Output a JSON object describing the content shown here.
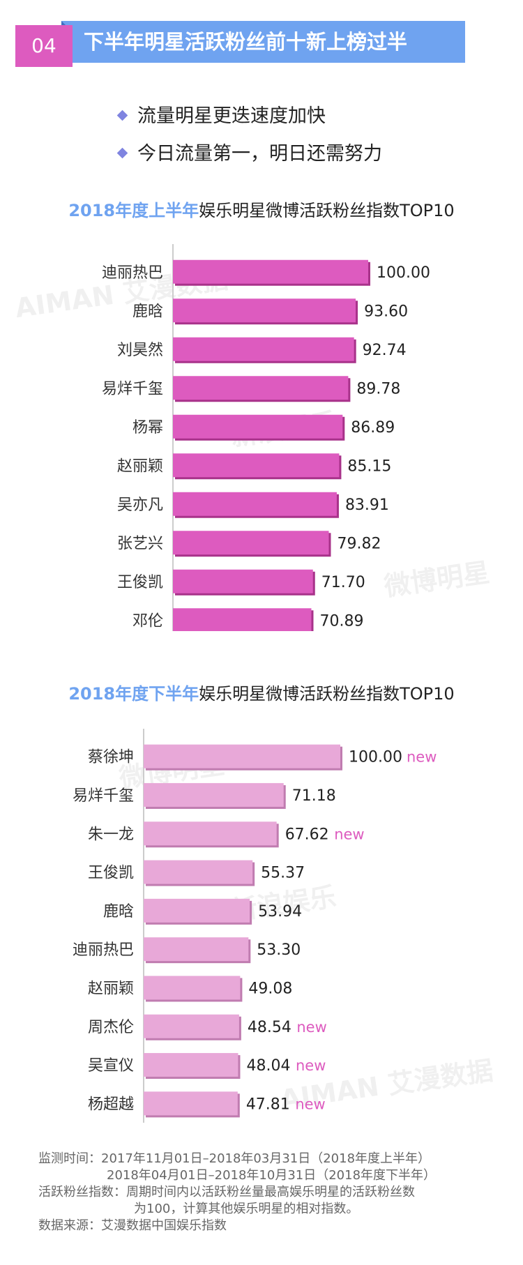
{
  "header": {
    "number": "04",
    "title": "下半年明星活跃粉丝前十新上榜过半"
  },
  "bullets": [
    "流量明星更迭速度加快",
    "今日流量第一，明日还需努力"
  ],
  "colors": {
    "accent_blue": "#6fa3f0",
    "accent_pink": "#dd5bbf",
    "bar_first_half": "#dd5bbf",
    "bar_second_half": "#e8a8d8",
    "new_tag": "#dd5bbf"
  },
  "chart_data": [
    {
      "type": "bar",
      "orientation": "horizontal",
      "title_highlight": "2018年度上半年",
      "title_rest": "娱乐明星微博活跃粉丝指数TOP10",
      "categories": [
        "迪丽热巴",
        "鹿晗",
        "刘昊然",
        "易烊千玺",
        "杨幂",
        "赵丽颖",
        "吴亦凡",
        "张艺兴",
        "王俊凯",
        "邓伦"
      ],
      "values": [
        100.0,
        93.6,
        92.74,
        89.78,
        86.89,
        85.15,
        83.91,
        79.82,
        71.7,
        70.89
      ],
      "value_labels": [
        "100.00",
        "93.60",
        "92.74",
        "89.78",
        "86.89",
        "85.15",
        "83.91",
        "79.82",
        "71.70",
        "70.89"
      ],
      "tags": [
        "",
        "",
        "",
        "",
        "",
        "",
        "",
        "",
        "",
        ""
      ]
    },
    {
      "type": "bar",
      "orientation": "horizontal",
      "title_highlight": "2018年度下半年",
      "title_rest": "娱乐明星微博活跃粉丝指数TOP10",
      "categories": [
        "蔡徐坤",
        "易烊千玺",
        "朱一龙",
        "王俊凯",
        "鹿晗",
        "迪丽热巴",
        "赵丽颖",
        "周杰伦",
        "吴宣仪",
        "杨超越"
      ],
      "values": [
        100.0,
        71.18,
        67.62,
        55.37,
        53.94,
        53.3,
        49.08,
        48.54,
        48.04,
        47.81
      ],
      "value_labels": [
        "100.00",
        "71.18",
        "67.62",
        "55.37",
        "53.94",
        "53.30",
        "49.08",
        "48.54",
        "48.04",
        "47.81"
      ],
      "tags": [
        "new",
        "",
        "new",
        "",
        "",
        "",
        "",
        "new",
        "new",
        "new"
      ]
    }
  ],
  "notes": {
    "period_label": "监测时间：",
    "period_1": "2017年11月01日–2018年03月31日（2018年度上半年）",
    "period_2": "2018年04月01日–2018年10月31日（2018年度下半年）",
    "index_label": "活跃粉丝指数：",
    "index_desc_1": "周期时间内以活跃粉丝量最高娱乐明星的活跃粉丝数",
    "index_desc_2": "为100，计算其他娱乐明星的相对指数。",
    "source_label": "数据来源：",
    "source": "艾漫数据中国娱乐指数"
  },
  "watermarks": [
    "AIMAN 艾漫数据",
    "新浪娱乐",
    "微博明星",
    "微博明星",
    "新浪娱乐",
    "AIMAN 艾漫数据"
  ]
}
